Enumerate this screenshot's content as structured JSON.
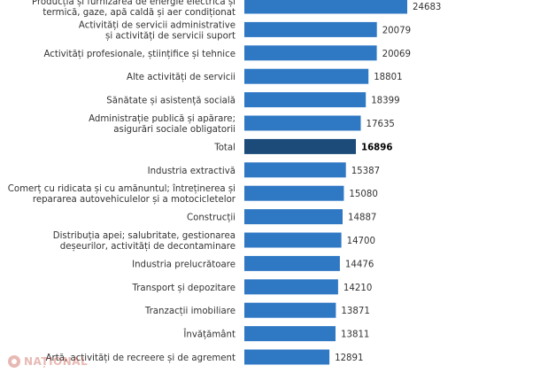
{
  "chart_data": {
    "type": "bar",
    "orientation": "horizontal",
    "categories": [
      [
        "Producția și furnizarea de energie electrică și",
        "termică, gaze, apă caldă și aer condiționat"
      ],
      [
        "Activități de servicii administrative",
        "și activități de servicii suport"
      ],
      [
        "Activități profesionale, științifice și tehnice"
      ],
      [
        "Alte activități de servicii"
      ],
      [
        "Sănătate și asistență socială"
      ],
      [
        "Administrație publică și apărare;",
        "asigurări sociale obligatorii"
      ],
      [
        "Total"
      ],
      [
        "Industria extractivă"
      ],
      [
        "Comerț cu ridicata și cu amănuntul; întreținerea și",
        "repararea autovehiculelor și a motocicletelor"
      ],
      [
        "Construcții"
      ],
      [
        "Distribuția apei; salubritate, gestionarea",
        "deșeurilor, activități de decontaminare"
      ],
      [
        "Industria prelucrătoare"
      ],
      [
        "Transport și depozitare"
      ],
      [
        "Tranzacții imobiliare"
      ],
      [
        "Învățământ"
      ],
      [
        "Artă, activități de recreere și de agrement"
      ]
    ],
    "values": [
      24683,
      20079,
      20069,
      18801,
      18399,
      17635,
      16896,
      15387,
      15080,
      14887,
      14700,
      14476,
      14210,
      13871,
      13811,
      12891
    ],
    "value_labels": [
      "24683",
      "20079",
      "20069",
      "18801",
      "18399",
      "17635",
      "16896",
      "15387",
      "15080",
      "14887",
      "14700",
      "14476",
      "14210",
      "13871",
      "13811",
      "12891"
    ],
    "highlight_category": "Total",
    "xlim": [
      0,
      24683
    ],
    "grid": false,
    "colors": {
      "bar": "#2f78c4",
      "highlight": "#1c4b7a"
    }
  },
  "watermark": {
    "text": "NAȚIONAL",
    "icon": "globe-icon"
  }
}
